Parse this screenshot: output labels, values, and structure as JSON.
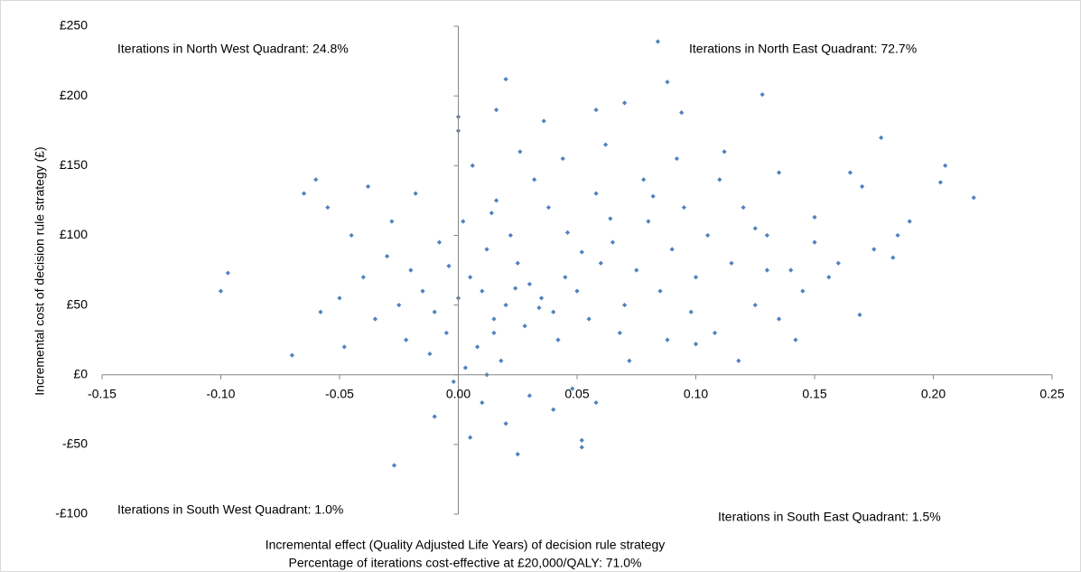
{
  "chart_data": {
    "type": "scatter",
    "x_label": "Incremental effect (Quality Adjusted Life Years) of decision rule strategy",
    "subtitle": "Percentage of iterations cost-effective at £20,000/QALY: 71.0%",
    "y_label": "Incremental cost of decision rule strategy (£)",
    "annotations": [
      "Iterations in North West Quadrant: 24.8%",
      "Iterations in North East Quadrant: 72.7%",
      "Iterations in South West Quadrant: 1.0%",
      "Iterations in South East Quadrant: 1.5%"
    ],
    "xlim": [
      -0.15,
      0.25
    ],
    "xticks": [
      -0.15,
      {
        "value": -0.1,
        "label": "-0.10"
      },
      -0.05,
      {
        "value": 0,
        "label": "0.00"
      },
      0.05,
      {
        "value": 0.1,
        "label": "0.10"
      },
      0.15,
      {
        "value": 0.2,
        "label": "0.20"
      },
      0.25
    ],
    "ylim": [
      -100,
      250
    ],
    "yticks": [
      {
        "value": -100,
        "label": "-£100"
      },
      {
        "value": -50,
        "label": "-£50"
      },
      {
        "value": 0,
        "label": "£0"
      },
      {
        "value": 50,
        "label": "£50"
      },
      {
        "value": 100,
        "label": "£100"
      },
      {
        "value": 150,
        "label": "£150"
      },
      {
        "value": 200,
        "label": "£200"
      },
      {
        "value": 250,
        "label": "£250"
      }
    ],
    "grid": false,
    "color": "#4f81bd",
    "x": [
      0.0,
      0.01,
      0.02,
      -0.01,
      0.005,
      0.015,
      0.03,
      -0.005,
      0.025,
      0.035,
      0.04,
      -0.015,
      -0.02,
      0.008,
      0.012,
      0.045,
      0.05,
      0.06,
      0.055,
      -0.025,
      -0.03,
      0.018,
      0.022,
      0.028,
      0.002,
      -0.008,
      0.065,
      0.07,
      0.075,
      0.08,
      -0.035,
      -0.04,
      0.038,
      0.042,
      0.003,
      -0.012,
      0.016,
      0.032,
      0.085,
      0.09,
      0.095,
      0.1,
      0.105,
      0.11,
      -0.045,
      -0.05,
      -0.055,
      0.048,
      0.01,
      -0.002,
      0.058,
      0.068,
      0.078,
      0.115,
      0.12,
      0.125,
      0.13,
      0.135,
      0.14,
      -0.018,
      -0.028,
      0.006,
      0.026,
      0.044,
      0.062,
      0.0,
      0.0,
      -0.06,
      -0.058,
      -0.048,
      -0.038,
      0.072,
      0.088,
      0.098,
      0.108,
      0.118,
      0.145,
      0.15,
      0.16,
      0.165,
      0.17,
      0.175,
      0.012,
      0.03,
      0.04,
      -0.01,
      0.058,
      0.02,
      0.005,
      0.015,
      0.024,
      0.034,
      -0.004,
      0.052,
      0.046,
      0.014,
      -0.022,
      0.064,
      0.082,
      0.092,
      0.112,
      0.094,
      0.058,
      0.036,
      0.07,
      0.016,
      0.125,
      0.135,
      0.142,
      0.156,
      0.185,
      0.19,
      0.13,
      0.1,
      -0.1,
      -0.097,
      -0.07,
      0.084,
      0.02,
      0.088,
      0.128,
      0.178,
      0.205,
      0.217,
      0.203,
      -0.027,
      0.025,
      0.052,
      0.052,
      0.169,
      0.183,
      0.15,
      -0.065
    ],
    "values": [
      55,
      60,
      50,
      45,
      70,
      40,
      65,
      30,
      80,
      55,
      45,
      60,
      75,
      20,
      90,
      70,
      60,
      80,
      40,
      50,
      85,
      10,
      100,
      35,
      110,
      95,
      95,
      50,
      75,
      110,
      40,
      70,
      120,
      25,
      5,
      15,
      125,
      140,
      60,
      90,
      120,
      70,
      100,
      140,
      100,
      55,
      120,
      -10,
      -20,
      -5,
      130,
      30,
      140,
      80,
      120,
      50,
      100,
      145,
      75,
      130,
      110,
      150,
      160,
      155,
      165,
      175,
      185,
      140,
      45,
      20,
      135,
      10,
      25,
      45,
      30,
      10,
      60,
      95,
      80,
      145,
      135,
      90,
      0,
      -15,
      -25,
      -30,
      -20,
      -35,
      -45,
      30,
      62,
      48,
      78,
      88,
      102,
      116,
      25,
      112,
      128,
      155,
      160,
      188,
      190,
      182,
      195,
      190,
      105,
      40,
      25,
      70,
      100,
      110,
      75,
      22,
      60,
      73,
      14,
      239,
      212,
      210,
      201,
      170,
      150,
      127,
      138,
      -65,
      -57,
      -52,
      -47,
      43,
      84,
      113,
      130
    ]
  }
}
